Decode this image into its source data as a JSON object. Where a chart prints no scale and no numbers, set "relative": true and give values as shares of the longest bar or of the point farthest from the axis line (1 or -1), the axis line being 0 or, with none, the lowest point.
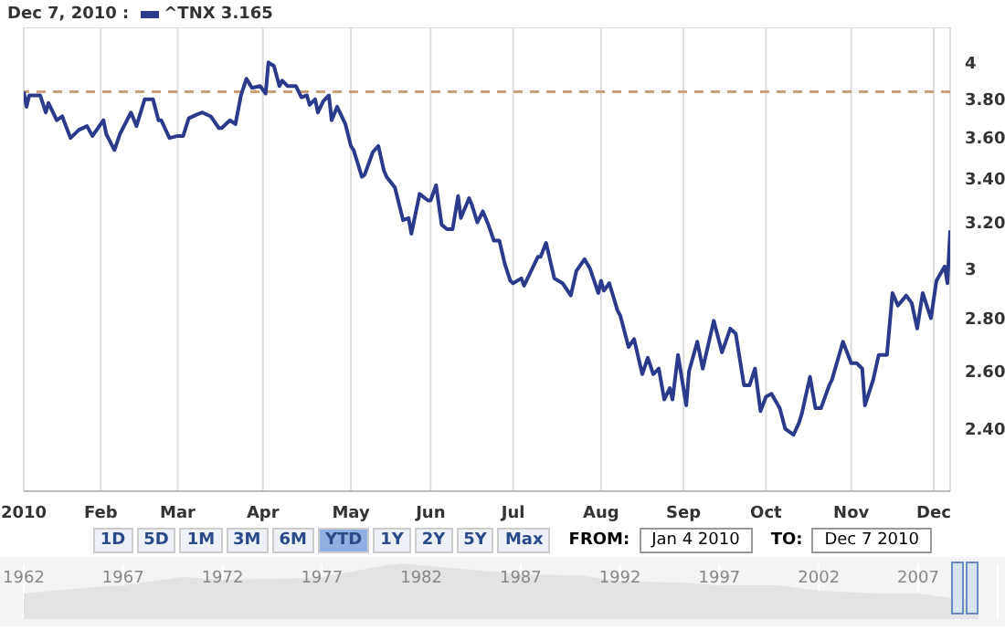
{
  "chart_data": [
    {
      "type": "line",
      "annotations": [
        "Dec 7, 2010 :",
        "1D",
        "5D",
        "1M",
        "3M",
        "6M",
        "YTD",
        "1Y",
        "2Y",
        "5Y",
        "Max",
        "FROM:",
        "Jan 4 2010",
        "TO:",
        "Dec 7 2010"
      ],
      "legend": "top left",
      "grid": true,
      "log": true,
      "marker": "none",
      "line_style": "solid",
      "xlim": [
        "2010-01-04",
        "2010-12-07"
      ],
      "xticks": [
        {
          "value": "2010-01-04",
          "label": "2010"
        },
        {
          "value": "2010-02-01",
          "label": "Feb"
        },
        {
          "value": "2010-03-01",
          "label": "Mar"
        },
        {
          "value": "2010-04-01",
          "label": "Apr"
        },
        {
          "value": "2010-05-03",
          "label": "May"
        },
        {
          "value": "2010-06-01",
          "label": "Jun"
        },
        {
          "value": "2010-07-01",
          "label": "Jul"
        },
        {
          "value": "2010-08-02",
          "label": "Aug"
        },
        {
          "value": "2010-09-01",
          "label": "Sep"
        },
        {
          "value": "2010-10-01",
          "label": "Oct"
        },
        {
          "value": "2010-11-01",
          "label": "Nov"
        },
        {
          "value": "2010-12-01",
          "label": "Dec"
        }
      ],
      "ylim": [
        2.2,
        4.2
      ],
      "yticks": [
        {
          "value": 2.4,
          "label": "2.40"
        },
        {
          "value": 2.6,
          "label": "2.60"
        },
        {
          "value": 2.8,
          "label": "2.80"
        },
        3,
        {
          "value": 3.2,
          "label": "3.20"
        },
        {
          "value": 3.4,
          "label": "3.40"
        },
        {
          "value": 3.6,
          "label": "3.60"
        },
        {
          "value": 3.8,
          "label": "3.80"
        },
        4
      ],
      "ref_lines": [
        {
          "axis": "y",
          "value": 3.84,
          "color": "#c8a07a",
          "line_style": "dashed"
        }
      ],
      "series": [
        {
          "name": "^TNX 3.165",
          "color": "#2b3a8a",
          "x": [
            "2010-01-04",
            "2010-01-05",
            "2010-01-06",
            "2010-01-10",
            "2010-01-12",
            "2010-01-13",
            "2010-01-16",
            "2010-01-18",
            "2010-01-21",
            "2010-01-24",
            "2010-01-27",
            "2010-01-29",
            "2010-02-01",
            "2010-02-02",
            "2010-02-03",
            "2010-02-06",
            "2010-02-08",
            "2010-02-12",
            "2010-02-14",
            "2010-02-17",
            "2010-02-20",
            "2010-02-22",
            "2010-02-23",
            "2010-02-26",
            "2010-03-01",
            "2010-03-03",
            "2010-03-05",
            "2010-03-08",
            "2010-03-10",
            "2010-03-13",
            "2010-03-16",
            "2010-03-17",
            "2010-03-20",
            "2010-03-22",
            "2010-03-24",
            "2010-03-26",
            "2010-03-28",
            "2010-03-31",
            "2010-04-02",
            "2010-04-03",
            "2010-04-05",
            "2010-04-07",
            "2010-04-08",
            "2010-04-10",
            "2010-04-13",
            "2010-04-15",
            "2010-04-17",
            "2010-04-18",
            "2010-04-20",
            "2010-04-21",
            "2010-04-23",
            "2010-04-25",
            "2010-04-26",
            "2010-04-28",
            "2010-05-01",
            "2010-05-03",
            "2010-05-04",
            "2010-05-07",
            "2010-05-08",
            "2010-05-11",
            "2010-05-13",
            "2010-05-15",
            "2010-05-16",
            "2010-05-19",
            "2010-05-22",
            "2010-05-24",
            "2010-05-25",
            "2010-05-28",
            "2010-05-31",
            "2010-06-01",
            "2010-06-03",
            "2010-06-05",
            "2010-06-07",
            "2010-06-09",
            "2010-06-11",
            "2010-06-12",
            "2010-06-15",
            "2010-06-16",
            "2010-06-18",
            "2010-06-20",
            "2010-06-22",
            "2010-06-24",
            "2010-06-26",
            "2010-06-28",
            "2010-06-30",
            "2010-07-01",
            "2010-07-04",
            "2010-07-05",
            "2010-07-10",
            "2010-07-11",
            "2010-07-13",
            "2010-07-16",
            "2010-07-19",
            "2010-07-22",
            "2010-07-24",
            "2010-07-27",
            "2010-07-29",
            "2010-08-01",
            "2010-08-02",
            "2010-08-03",
            "2010-08-05",
            "2010-08-08",
            "2010-08-09",
            "2010-08-12",
            "2010-08-14",
            "2010-08-17",
            "2010-08-19",
            "2010-08-21",
            "2010-08-23",
            "2010-08-25",
            "2010-08-27",
            "2010-08-28",
            "2010-08-30",
            "2010-09-02",
            "2010-09-03",
            "2010-09-06",
            "2010-09-08",
            "2010-09-12",
            "2010-09-15",
            "2010-09-18",
            "2010-09-20",
            "2010-09-23",
            "2010-09-25",
            "2010-09-27",
            "2010-09-29",
            "2010-10-01",
            "2010-10-03",
            "2010-10-06",
            "2010-10-08",
            "2010-10-11",
            "2010-10-13",
            "2010-10-14",
            "2010-10-17",
            "2010-10-19",
            "2010-10-21",
            "2010-10-24",
            "2010-10-25",
            "2010-10-29",
            "2010-11-01",
            "2010-11-03",
            "2010-11-05",
            "2010-11-06",
            "2010-11-09",
            "2010-11-11",
            "2010-11-14",
            "2010-11-16",
            "2010-11-18",
            "2010-11-21",
            "2010-11-23",
            "2010-11-25",
            "2010-11-27",
            "2010-11-30",
            "2010-12-02",
            "2010-12-05",
            "2010-12-06",
            "2010-12-07"
          ],
          "values": [
            3.84,
            3.76,
            3.82,
            3.82,
            3.73,
            3.78,
            3.69,
            3.71,
            3.6,
            3.64,
            3.66,
            3.61,
            3.67,
            3.69,
            3.62,
            3.54,
            3.62,
            3.73,
            3.66,
            3.8,
            3.8,
            3.69,
            3.69,
            3.6,
            3.61,
            3.61,
            3.7,
            3.72,
            3.73,
            3.71,
            3.65,
            3.65,
            3.69,
            3.67,
            3.82,
            3.91,
            3.86,
            3.87,
            3.83,
            4.0,
            3.98,
            3.87,
            3.9,
            3.87,
            3.87,
            3.81,
            3.82,
            3.77,
            3.8,
            3.73,
            3.79,
            3.82,
            3.69,
            3.76,
            3.67,
            3.56,
            3.54,
            3.41,
            3.42,
            3.53,
            3.56,
            3.44,
            3.41,
            3.36,
            3.21,
            3.22,
            3.15,
            3.33,
            3.3,
            3.3,
            3.37,
            3.19,
            3.17,
            3.17,
            3.32,
            3.22,
            3.31,
            3.28,
            3.2,
            3.25,
            3.19,
            3.12,
            3.12,
            3.02,
            2.95,
            2.94,
            2.96,
            2.93,
            3.05,
            3.05,
            3.11,
            2.96,
            2.94,
            2.89,
            2.99,
            3.04,
            3.0,
            2.9,
            2.95,
            2.91,
            2.94,
            2.83,
            2.81,
            2.69,
            2.72,
            2.59,
            2.65,
            2.59,
            2.61,
            2.5,
            2.54,
            2.5,
            2.66,
            2.48,
            2.6,
            2.71,
            2.61,
            2.79,
            2.67,
            2.76,
            2.74,
            2.55,
            2.55,
            2.61,
            2.46,
            2.51,
            2.52,
            2.47,
            2.4,
            2.38,
            2.42,
            2.45,
            2.58,
            2.47,
            2.47,
            2.55,
            2.57,
            2.71,
            2.63,
            2.63,
            2.61,
            2.48,
            2.57,
            2.66,
            2.66,
            2.9,
            2.85,
            2.89,
            2.86,
            2.76,
            2.9,
            2.8,
            2.95,
            3.01,
            2.94,
            3.165
          ]
        }
      ]
    },
    {
      "type": "area",
      "relative": true,
      "grid": "x",
      "xlim": [
        1962,
        2011
      ],
      "xticks": [
        1962,
        1967,
        1972,
        1977,
        1982,
        1987,
        1992,
        1997,
        2002,
        2007
      ],
      "series": [
        {
          "color": "#e3e3e3",
          "x": [
            1962,
            1965,
            1967,
            1970,
            1972,
            1975,
            1977,
            1980,
            1981,
            1984,
            1987,
            1990,
            1992,
            1995,
            1997,
            2000,
            2002,
            2005,
            2007,
            2010
          ],
          "values": [
            0.45,
            0.55,
            0.6,
            0.75,
            0.7,
            0.72,
            0.75,
            0.95,
            1,
            0.9,
            0.8,
            0.78,
            0.68,
            0.65,
            0.6,
            0.6,
            0.5,
            0.45,
            0.45,
            0.3
          ]
        }
      ]
    }
  ]
}
